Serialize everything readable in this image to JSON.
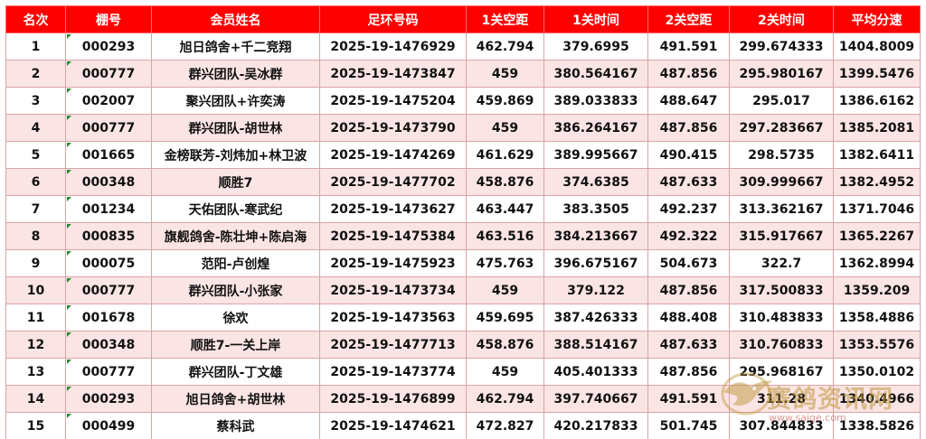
{
  "table": {
    "headers": [
      "名次",
      "棚号",
      "会员姓名",
      "足环号码",
      "1关空距",
      "1关时间",
      "2关空距",
      "2关时间",
      "平均分速"
    ],
    "rows": [
      [
        "1",
        "000293",
        "旭日鸽舍+千二竞翔",
        "2025-19-1476929",
        "462.794",
        "379.6995",
        "491.591",
        "299.674333",
        "1404.8009"
      ],
      [
        "2",
        "000777",
        "群兴团队-吴冰群",
        "2025-19-1473847",
        "459",
        "380.564167",
        "487.856",
        "295.980167",
        "1399.5476"
      ],
      [
        "3",
        "002007",
        "聚兴团队+许奕涛",
        "2025-19-1475204",
        "459.869",
        "389.033833",
        "488.647",
        "295.017",
        "1386.6162"
      ],
      [
        "4",
        "000777",
        "群兴团队-胡世林",
        "2025-19-1473790",
        "459",
        "386.264167",
        "487.856",
        "297.283667",
        "1385.2081"
      ],
      [
        "5",
        "001665",
        "金榜联芳-刘炜加+林卫波",
        "2025-19-1474269",
        "461.629",
        "389.995667",
        "490.415",
        "298.5735",
        "1382.6411"
      ],
      [
        "6",
        "000348",
        "顺胜7",
        "2025-19-1477702",
        "458.876",
        "374.6385",
        "487.633",
        "309.999667",
        "1382.4952"
      ],
      [
        "7",
        "001234",
        "天佑团队-寒武纪",
        "2025-19-1473627",
        "463.447",
        "383.3505",
        "492.237",
        "313.362167",
        "1371.7046"
      ],
      [
        "8",
        "000835",
        "旗舰鸽舍-陈壮坤+陈启海",
        "2025-19-1475384",
        "463.516",
        "384.213667",
        "492.322",
        "315.917667",
        "1365.2267"
      ],
      [
        "9",
        "000075",
        "范阳-卢创煌",
        "2025-19-1475923",
        "475.763",
        "396.675167",
        "504.673",
        "322.7",
        "1362.8994"
      ],
      [
        "10",
        "000777",
        "群兴团队-小张家",
        "2025-19-1473734",
        "459",
        "379.122",
        "487.856",
        "317.500833",
        "1359.209"
      ],
      [
        "11",
        "001678",
        "徐欢",
        "2025-19-1473563",
        "459.695",
        "387.426333",
        "488.408",
        "310.483833",
        "1358.4886"
      ],
      [
        "12",
        "000348",
        "顺胜7-一关上岸",
        "2025-19-1477713",
        "458.876",
        "388.514167",
        "487.633",
        "310.760833",
        "1353.5576"
      ],
      [
        "13",
        "000777",
        "群兴团队-丁文雄",
        "2025-19-1473774",
        "459",
        "405.401333",
        "487.856",
        "295.968167",
        "1350.0102"
      ],
      [
        "14",
        "000293",
        "旭日鸽舍+胡世林",
        "2025-19-1476899",
        "462.794",
        "397.740667",
        "491.591",
        "311.28",
        "1340.4966"
      ],
      [
        "15",
        "000499",
        "蔡科武",
        "2025-19-1474621",
        "472.827",
        "420.217833",
        "501.745",
        "307.844833",
        "1338.5826"
      ]
    ]
  },
  "watermark": {
    "title": "赛鸽资讯网",
    "url": "www.saige.com"
  },
  "colors": {
    "header_bg": "#ff0000",
    "header_text": "#ffffff",
    "row_alt_bg": "#fbe4e4",
    "shed_marker": "#1e8b2e"
  }
}
